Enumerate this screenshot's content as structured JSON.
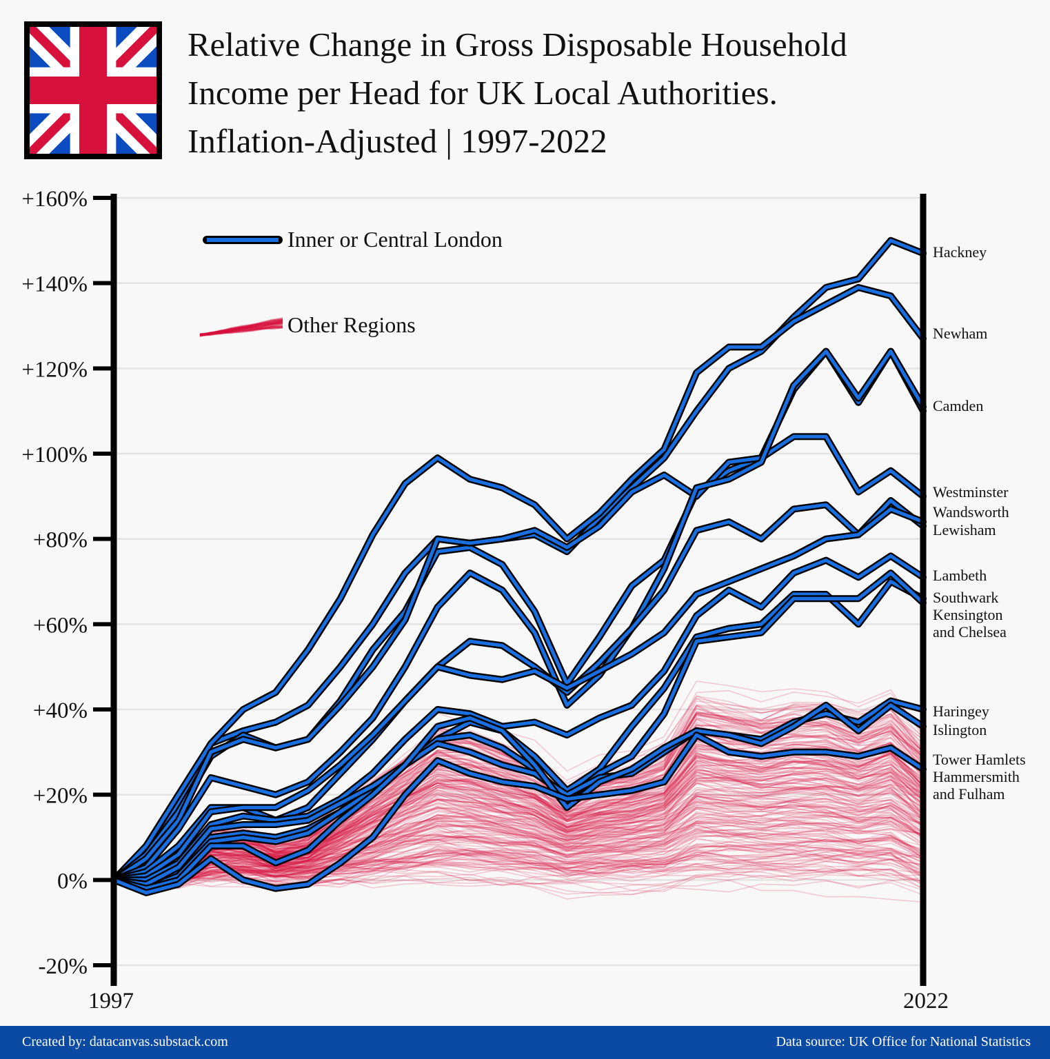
{
  "title_lines": [
    "Relative Change in Gross Disposable Household",
    "Income per Head for UK Local Authorities.",
    "Inflation-Adjusted | 1997-2022"
  ],
  "footer": {
    "credit": "Created by: datacanvas.substack.com",
    "source": "Data source: UK Office for National Statistics"
  },
  "colors": {
    "background": "#f8f8f8",
    "london": "#1a6fe0",
    "london_outline": "#000000",
    "other_regions": "#d6103a",
    "footer": "#0b4aa2",
    "flag_blue": "#0a4bbf",
    "flag_red": "#d8103c"
  },
  "chart_data": {
    "type": "line",
    "title": "Relative Change in Gross Disposable Household Income per Head for UK Local Authorities. Inflation-Adjusted | 1997-2022",
    "xlabel": "",
    "ylabel": "",
    "x": [
      1997,
      1998,
      1999,
      2000,
      2001,
      2002,
      2003,
      2004,
      2005,
      2006,
      2007,
      2008,
      2009,
      2010,
      2011,
      2012,
      2013,
      2014,
      2015,
      2016,
      2017,
      2018,
      2019,
      2020,
      2021,
      2022
    ],
    "x_tick_labels": [
      "1997",
      "2022"
    ],
    "ylim": [
      -20,
      160
    ],
    "y_ticks": [
      -20,
      0,
      20,
      40,
      60,
      80,
      100,
      120,
      140,
      160
    ],
    "y_tick_labels": [
      "-20%",
      "0%",
      "+20%",
      "+40%",
      "+60%",
      "+80%",
      "+100%",
      "+120%",
      "+140%",
      "+160%"
    ],
    "grid": "horizontal",
    "legend": {
      "position": "top-left",
      "entries": [
        "Inner or Central London",
        "Other Regions"
      ]
    },
    "series": [
      {
        "name": "Hackney",
        "group": "london",
        "values": [
          0,
          5,
          18,
          32,
          35,
          37,
          41,
          50,
          60,
          72,
          80,
          79,
          80,
          81,
          77,
          85,
          92,
          99,
          110,
          120,
          124,
          132,
          139,
          141,
          150,
          147
        ]
      },
      {
        "name": "Newham",
        "group": "london",
        "values": [
          0,
          8,
          20,
          32,
          40,
          44,
          54,
          66,
          81,
          93,
          99,
          94,
          92,
          88,
          80,
          86,
          94,
          101,
          119,
          125,
          125,
          131,
          135,
          139,
          137,
          127
        ]
      },
      {
        "name": "Camden",
        "group": "london",
        "values": [
          0,
          6,
          16,
          29,
          34,
          31,
          33,
          42,
          54,
          63,
          77,
          78,
          74,
          63,
          46,
          57,
          69,
          75,
          91,
          96,
          99,
          115,
          124,
          112,
          124,
          110
        ]
      },
      {
        "name": "Westminster",
        "group": "london",
        "values": [
          0,
          5,
          14,
          30,
          33,
          31,
          33,
          41,
          50,
          61,
          80,
          79,
          80,
          82,
          78,
          83,
          91,
          95,
          90,
          98,
          99,
          104,
          104,
          91,
          96,
          90
        ]
      },
      {
        "name": "Wandsworth",
        "group": "london",
        "values": [
          0,
          3,
          12,
          24,
          22,
          20,
          23,
          30,
          38,
          50,
          64,
          72,
          68,
          58,
          41,
          48,
          59,
          73,
          92,
          94,
          98,
          116,
          124,
          113,
          124,
          111
        ]
      },
      {
        "name": "Lewisham",
        "group": "london",
        "values": [
          0,
          2,
          8,
          17,
          17,
          14,
          17,
          25,
          33,
          42,
          50,
          56,
          55,
          50,
          44,
          51,
          59,
          68,
          82,
          84,
          80,
          87,
          88,
          81,
          89,
          83
        ]
      },
      {
        "name": "Lambeth",
        "group": "london",
        "values": [
          0,
          1,
          6,
          16,
          17,
          17,
          21,
          27,
          34,
          42,
          50,
          48,
          47,
          49,
          45,
          49,
          53,
          58,
          67,
          70,
          73,
          76,
          80,
          81,
          87,
          84
        ]
      },
      {
        "name": "Southwark",
        "group": "london",
        "values": [
          0,
          0,
          4,
          13,
          15,
          14,
          15,
          19,
          25,
          33,
          40,
          39,
          36,
          37,
          34,
          38,
          41,
          49,
          62,
          68,
          64,
          72,
          75,
          71,
          76,
          71
        ]
      },
      {
        "name": "Kensington and Chelsea",
        "group": "london",
        "values": [
          0,
          -1,
          2,
          10,
          11,
          10,
          12,
          16,
          22,
          27,
          33,
          37,
          35,
          29,
          21,
          26,
          36,
          45,
          57,
          59,
          60,
          67,
          67,
          60,
          70,
          66
        ]
      },
      {
        "name": "Haringey",
        "group": "london",
        "values": [
          0,
          -2,
          1,
          9,
          10,
          9,
          11,
          16,
          21,
          27,
          33,
          34,
          31,
          26,
          19,
          25,
          29,
          39,
          56,
          57,
          58,
          66,
          66,
          66,
          72,
          65
        ]
      },
      {
        "name": "Islington",
        "group": "london",
        "values": [
          0,
          -1,
          3,
          12,
          13,
          13,
          14,
          18,
          22,
          27,
          32,
          30,
          27,
          25,
          20,
          24,
          25,
          30,
          35,
          34,
          33,
          37,
          39,
          37,
          42,
          40
        ]
      },
      {
        "name": "Tower Hamlets",
        "group": "london",
        "values": [
          0,
          -2,
          0,
          8,
          8,
          4,
          7,
          14,
          20,
          27,
          36,
          38,
          35,
          27,
          17,
          23,
          26,
          31,
          35,
          34,
          32,
          36,
          41,
          35,
          41,
          36
        ]
      },
      {
        "name": "Hammersmith and Fulham",
        "group": "london",
        "values": [
          0,
          -3,
          -1,
          5,
          0,
          -2,
          -1,
          4,
          10,
          20,
          28,
          25,
          23,
          22,
          19,
          20,
          21,
          23,
          34,
          30,
          29,
          30,
          30,
          29,
          31,
          26
        ]
      }
    ]
  }
}
